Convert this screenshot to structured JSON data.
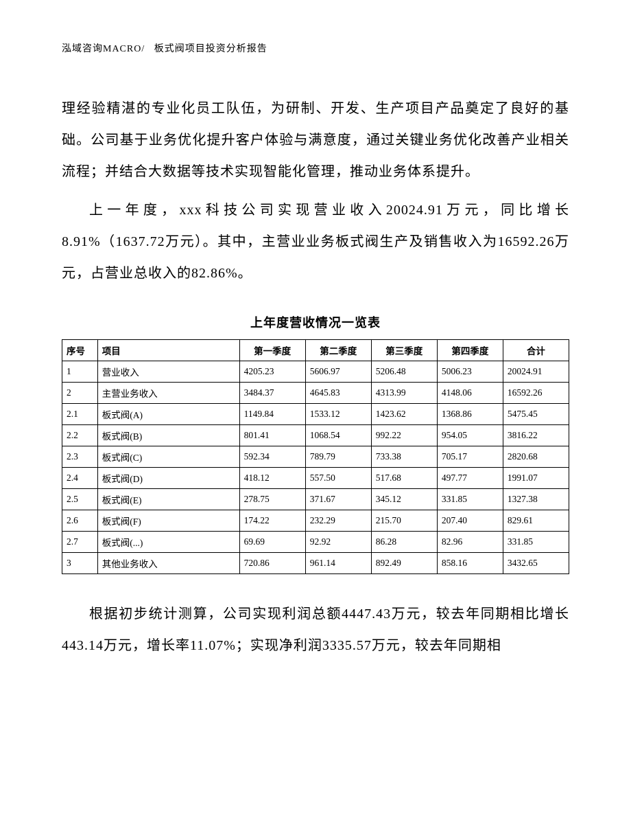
{
  "header": {
    "company": "泓域咨询MACRO/",
    "title": "板式阀项目投资分析报告"
  },
  "paragraphs": {
    "p1": "理经验精湛的专业化员工队伍，为研制、开发、生产项目产品奠定了良好的基础。公司基于业务优化提升客户体验与满意度，通过关键业务优化改善产业相关流程；并结合大数据等技术实现智能化管理，推动业务体系提升。",
    "p2": "上一年度，xxx科技公司实现营业收入20024.91万元，同比增长8.91%（1637.72万元）。其中，主营业业务板式阀生产及销售收入为16592.26万元，占营业总收入的82.86%。",
    "p3": "根据初步统计测算，公司实现利润总额4447.43万元，较去年同期相比增长443.14万元，增长率11.07%；实现净利润3335.57万元，较去年同期相"
  },
  "table": {
    "title": "上年度营收情况一览表",
    "title_fontsize": 18,
    "cell_fontsize": 13.5,
    "border_color": "#000000",
    "background_color": "#ffffff",
    "columns": [
      "序号",
      "项目",
      "第一季度",
      "第二季度",
      "第三季度",
      "第四季度",
      "合计"
    ],
    "rows": [
      {
        "seq": "1",
        "item": "营业收入",
        "q1": "4205.23",
        "q2": "5606.97",
        "q3": "5206.48",
        "q4": "5006.23",
        "total": "20024.91"
      },
      {
        "seq": "2",
        "item": "主营业务收入",
        "q1": "3484.37",
        "q2": "4645.83",
        "q3": "4313.99",
        "q4": "4148.06",
        "total": "16592.26"
      },
      {
        "seq": "2.1",
        "item": "板式阀(A)",
        "q1": "1149.84",
        "q2": "1533.12",
        "q3": "1423.62",
        "q4": "1368.86",
        "total": "5475.45"
      },
      {
        "seq": "2.2",
        "item": "板式阀(B)",
        "q1": "801.41",
        "q2": "1068.54",
        "q3": "992.22",
        "q4": "954.05",
        "total": "3816.22"
      },
      {
        "seq": "2.3",
        "item": "板式阀(C)",
        "q1": "592.34",
        "q2": "789.79",
        "q3": "733.38",
        "q4": "705.17",
        "total": "2820.68"
      },
      {
        "seq": "2.4",
        "item": "板式阀(D)",
        "q1": "418.12",
        "q2": "557.50",
        "q3": "517.68",
        "q4": "497.77",
        "total": "1991.07"
      },
      {
        "seq": "2.5",
        "item": "板式阀(E)",
        "q1": "278.75",
        "q2": "371.67",
        "q3": "345.12",
        "q4": "331.85",
        "total": "1327.38"
      },
      {
        "seq": "2.6",
        "item": "板式阀(F)",
        "q1": "174.22",
        "q2": "232.29",
        "q3": "215.70",
        "q4": "207.40",
        "total": "829.61"
      },
      {
        "seq": "2.7",
        "item": "板式阀(...)",
        "q1": "69.69",
        "q2": "92.92",
        "q3": "86.28",
        "q4": "82.96",
        "total": "331.85"
      },
      {
        "seq": "3",
        "item": "其他业务收入",
        "q1": "720.86",
        "q2": "961.14",
        "q3": "892.49",
        "q4": "858.16",
        "total": "3432.65"
      }
    ]
  }
}
